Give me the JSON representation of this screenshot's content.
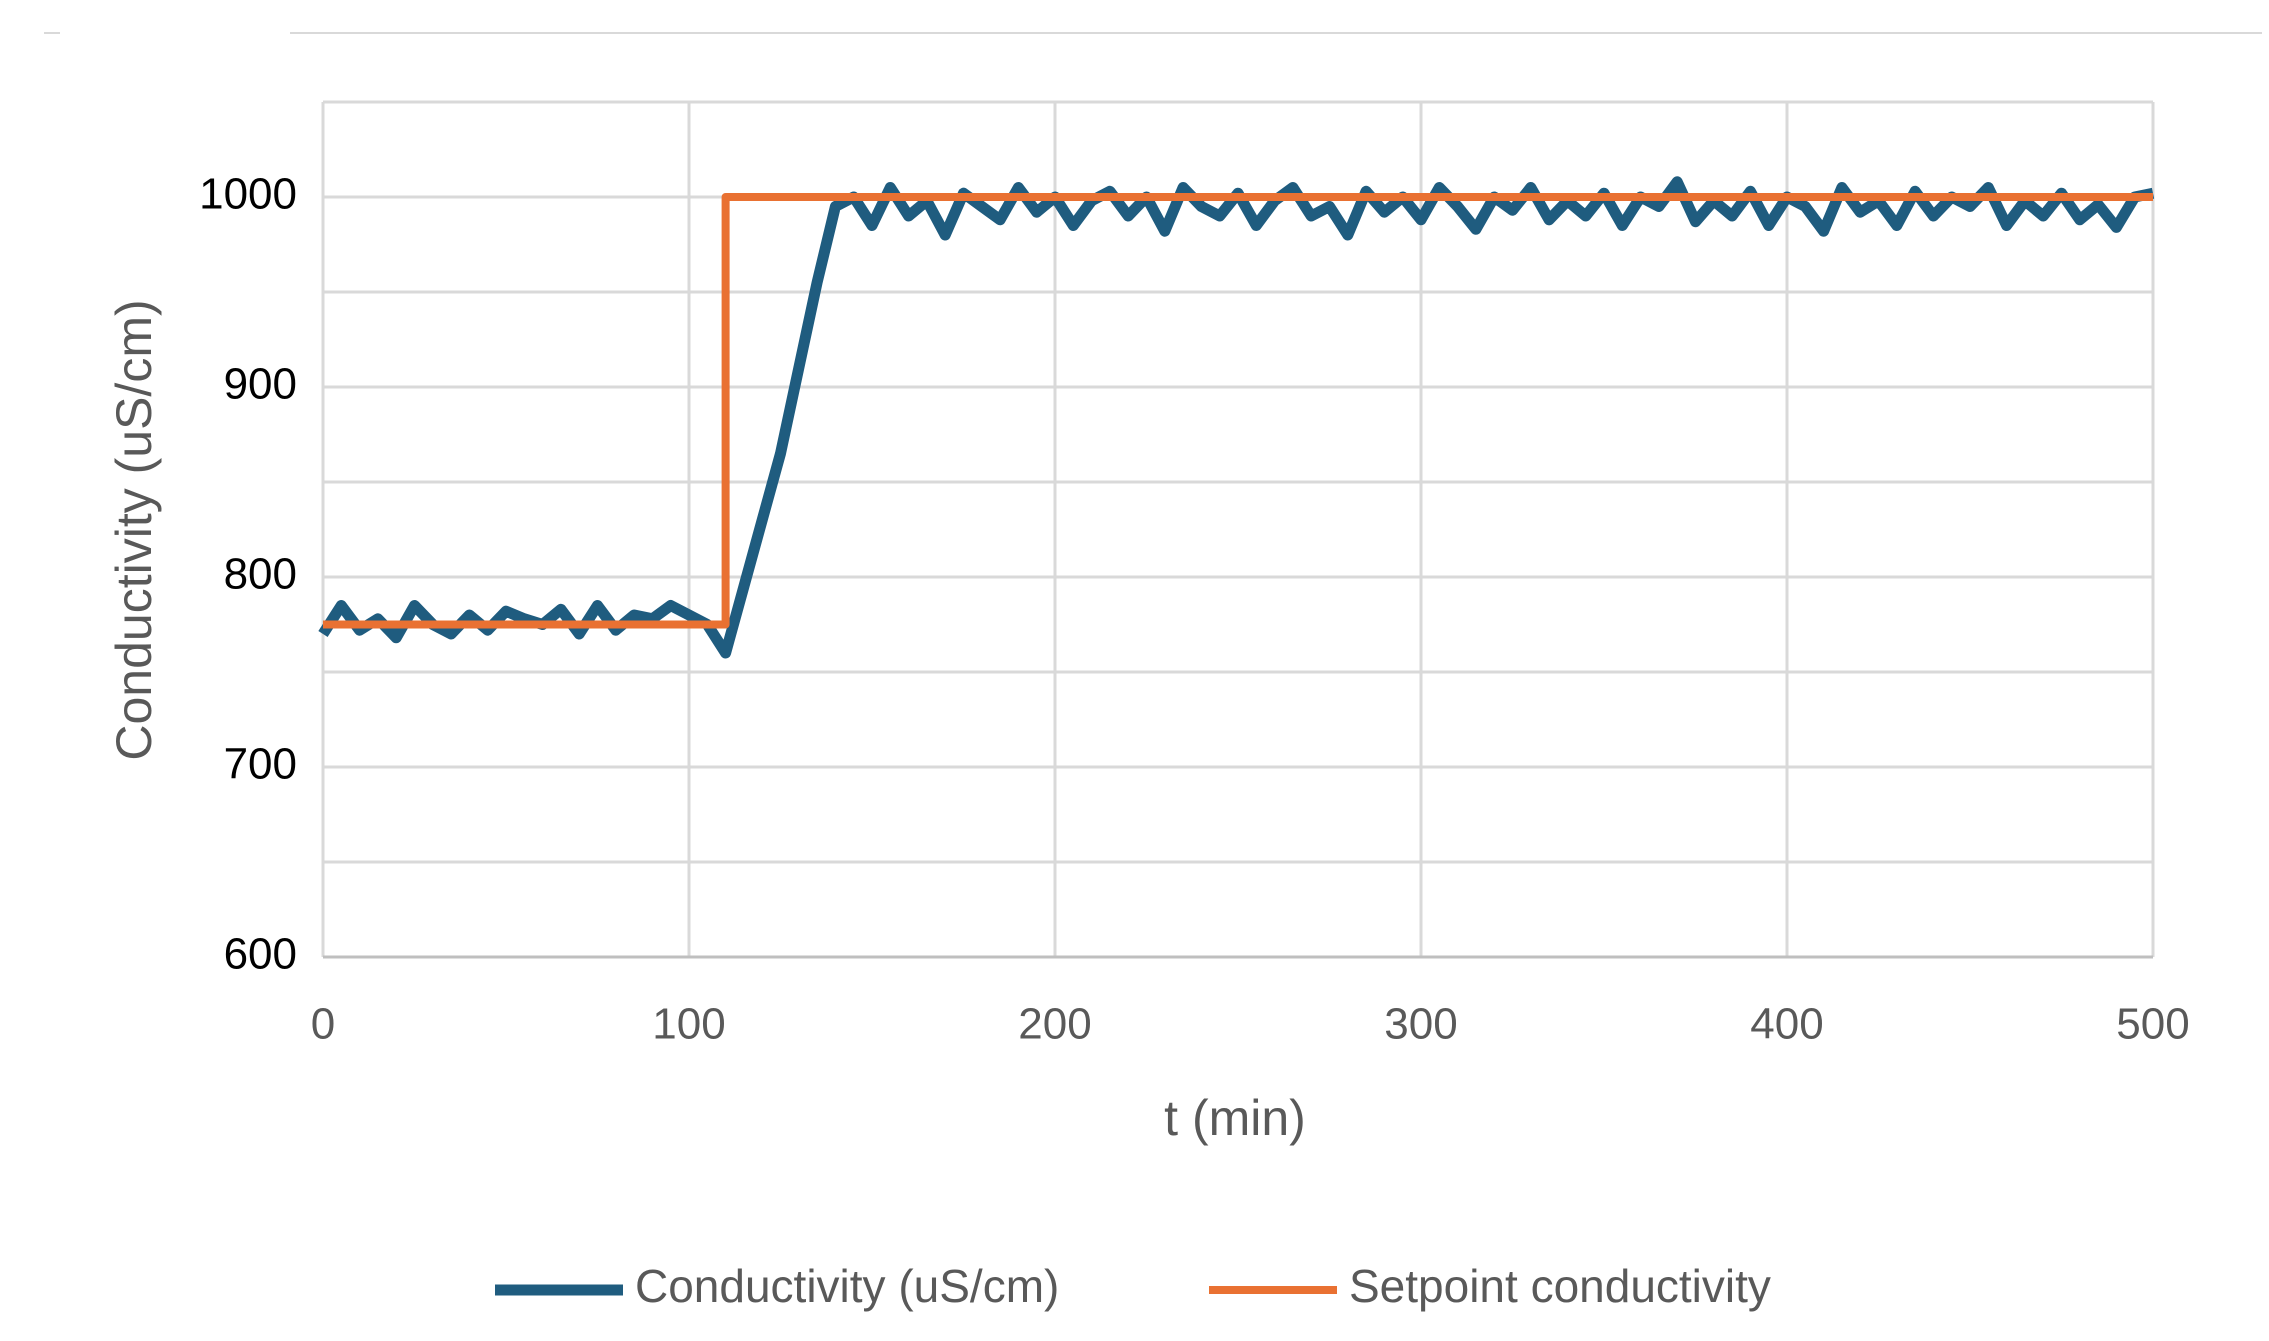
{
  "chart_data": {
    "type": "line",
    "xlabel": "t (min)",
    "ylabel": "Conductivity (uS/cm)",
    "xlim": [
      0,
      500
    ],
    "xticks": [
      0,
      100,
      200,
      300,
      400,
      500
    ],
    "ylim": [
      600,
      1050
    ],
    "yticks": [
      600,
      700,
      800,
      900,
      1000
    ],
    "y_minor_grid": [
      650,
      750,
      850,
      950,
      1050
    ],
    "grid": true,
    "legend": "bottom",
    "series": [
      {
        "name": "Conductivity (uS/cm)",
        "color": "#1f5c7f",
        "x": [
          0,
          5,
          10,
          15,
          20,
          25,
          30,
          35,
          40,
          45,
          50,
          55,
          60,
          65,
          70,
          75,
          80,
          85,
          90,
          95,
          100,
          105,
          110,
          115,
          120,
          125,
          130,
          135,
          140,
          145,
          150,
          155,
          160,
          165,
          170,
          175,
          180,
          185,
          190,
          195,
          200,
          205,
          210,
          215,
          220,
          225,
          230,
          235,
          240,
          245,
          250,
          255,
          260,
          265,
          270,
          275,
          280,
          285,
          290,
          295,
          300,
          305,
          310,
          315,
          320,
          325,
          330,
          335,
          340,
          345,
          350,
          355,
          360,
          365,
          370,
          375,
          380,
          385,
          390,
          395,
          400,
          405,
          410,
          415,
          420,
          425,
          430,
          435,
          440,
          445,
          450,
          455,
          460,
          465,
          470,
          475,
          480,
          485,
          490,
          495,
          500
        ],
        "values": [
          770,
          785,
          772,
          778,
          768,
          785,
          775,
          770,
          780,
          772,
          782,
          778,
          775,
          783,
          770,
          785,
          772,
          780,
          778,
          785,
          780,
          775,
          760,
          795,
          830,
          865,
          910,
          955,
          995,
          1000,
          985,
          1005,
          990,
          998,
          980,
          1002,
          995,
          988,
          1005,
          992,
          1000,
          985,
          998,
          1003,
          990,
          1000,
          982,
          1005,
          995,
          990,
          1002,
          985,
          998,
          1005,
          990,
          995,
          980,
          1003,
          992,
          1000,
          988,
          1005,
          995,
          983,
          1000,
          993,
          1005,
          988,
          998,
          990,
          1002,
          985,
          1000,
          995,
          1008,
          987,
          998,
          990,
          1003,
          985,
          1000,
          995,
          982,
          1005,
          992,
          998,
          985,
          1003,
          990,
          1000,
          995,
          1005,
          985,
          998,
          990,
          1002,
          988,
          996,
          984,
          1000,
          1002
        ]
      },
      {
        "name": "Setpoint conductivity",
        "color": "#e97132",
        "x": [
          0,
          110,
          110,
          500
        ],
        "values": [
          775,
          775,
          1000,
          1000
        ]
      }
    ]
  }
}
